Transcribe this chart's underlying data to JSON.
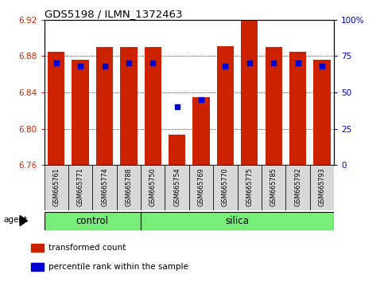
{
  "title": "GDS5198 / ILMN_1372463",
  "samples": [
    "GSM665761",
    "GSM665771",
    "GSM665774",
    "GSM665788",
    "GSM665750",
    "GSM665754",
    "GSM665769",
    "GSM665770",
    "GSM665775",
    "GSM665785",
    "GSM665792",
    "GSM665793"
  ],
  "bar_values": [
    6.885,
    6.876,
    6.89,
    6.89,
    6.89,
    6.793,
    6.835,
    6.891,
    6.92,
    6.89,
    6.885,
    6.876
  ],
  "percentile_ranks": [
    70,
    68,
    68,
    70,
    70,
    40,
    45,
    68,
    70,
    70,
    70,
    68
  ],
  "ymin": 6.76,
  "ymax": 6.92,
  "yticks": [
    6.76,
    6.8,
    6.84,
    6.88,
    6.92
  ],
  "right_yticks": [
    0,
    25,
    50,
    75,
    100
  ],
  "right_ytick_labels": [
    "0",
    "25",
    "50",
    "75",
    "100%"
  ],
  "bar_color": "#cc2200",
  "dot_color": "#0000cc",
  "bar_width": 0.7,
  "group_color": "#77ee77",
  "tick_label_area_color": "#d8d8d8",
  "legend_items": [
    "transformed count",
    "percentile rank within the sample"
  ],
  "legend_colors": [
    "#cc2200",
    "#0000cc"
  ],
  "agent_label": "agent",
  "control_range": [
    0,
    3
  ],
  "silica_range": [
    4,
    11
  ]
}
